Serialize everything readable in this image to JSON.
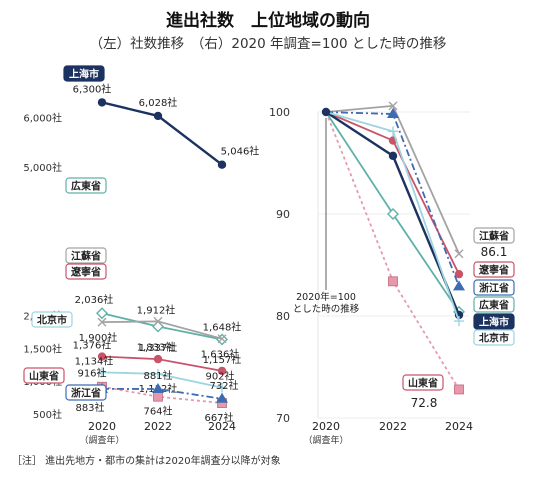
{
  "header": {
    "title": "進出社数　上位地域の動向",
    "subtitle": "（左）社数推移　（右）2020 年調査=100 とした時の推移"
  },
  "note": "［注］ 進出先地方・都市の集計は2020年調査分以降が対象",
  "chart_data": [
    {
      "type": "line",
      "panel": "left",
      "categories": [
        "2020",
        "2022",
        "2024"
      ],
      "x_tick_sublabel": "（調査年）",
      "y_ticks": [
        "500社",
        "1,000社",
        "1,500社",
        "2,000社",
        "5,000社",
        "6,000社"
      ],
      "y_axis_note": "broken axis between 2,000社 and 5,000社",
      "series": [
        {
          "name": "上海市",
          "values": [
            6300,
            6028,
            5046
          ],
          "labels": [
            "6,300社",
            "6,028社",
            "5,046社"
          ],
          "color": "#1c3260",
          "marker": "circle"
        },
        {
          "name": "広東省",
          "values": [
            2036,
            1833,
            1636
          ],
          "labels": [
            "2,036社",
            "1,833社",
            "1,636社"
          ],
          "color": "#5fb1a8",
          "marker": "diamond-open"
        },
        {
          "name": "江蘇省",
          "values": [
            1900,
            1912,
            1648
          ],
          "labels": [
            "1,900社",
            "1,912社",
            "1,648社"
          ],
          "color": "#a3a3a3",
          "marker": "cross"
        },
        {
          "name": "遼寧省",
          "values": [
            1376,
            1337,
            1157
          ],
          "labels": [
            "1,376社",
            "1,337社",
            "1,157社"
          ],
          "color": "#c9546a",
          "marker": "circle"
        },
        {
          "name": "北京市",
          "values": [
            1134,
            1112,
            902
          ],
          "labels": [
            "1,134社",
            "1,112社",
            "902社"
          ],
          "color": "#9ed3e0",
          "marker": "plus"
        },
        {
          "name": "山東省",
          "values": [
            916,
            764,
            667
          ],
          "labels": [
            "916社",
            "764社",
            "667社"
          ],
          "color": "#e898aa",
          "marker": "square"
        },
        {
          "name": "浙江省",
          "values": [
            883,
            881,
            732
          ],
          "labels": [
            "883社",
            "881社",
            "732社"
          ],
          "color": "#3d6cb3",
          "marker": "triangle"
        }
      ]
    },
    {
      "type": "line",
      "panel": "right",
      "categories": [
        "2020",
        "2022",
        "2024"
      ],
      "x_tick_sublabel": "（調査年）",
      "ylim": [
        70,
        100
      ],
      "y_ticks": [
        70,
        80,
        90,
        100
      ],
      "annotation": "2020年=100\nとした時の推移",
      "series": [
        {
          "name": "江蘇省",
          "values": [
            100,
            100.6,
            86.1
          ],
          "end_label": "86.1",
          "color": "#a3a3a3"
        },
        {
          "name": "遼寧省",
          "values": [
            100,
            97.2,
            84.1
          ],
          "color": "#c9546a"
        },
        {
          "name": "浙江省",
          "values": [
            100,
            99.8,
            82.9
          ],
          "color": "#3d6cb3"
        },
        {
          "name": "広東省",
          "values": [
            100,
            90.0,
            80.4
          ],
          "color": "#5fb1a8"
        },
        {
          "name": "上海市",
          "values": [
            100,
            95.7,
            80.1
          ],
          "color": "#1c3260"
        },
        {
          "name": "北京市",
          "values": [
            100,
            98.1,
            79.5
          ],
          "color": "#9ed3e0"
        },
        {
          "name": "山東省",
          "values": [
            100,
            83.4,
            72.8
          ],
          "end_label": "72.8",
          "color": "#e898aa"
        }
      ]
    }
  ]
}
